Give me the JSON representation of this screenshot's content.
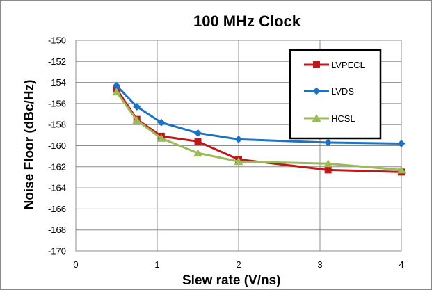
{
  "chart_data": {
    "type": "line",
    "title": "100 MHz Clock",
    "xlabel": "Slew rate (V/ns)",
    "ylabel": "Noise Floor (dBc/Hz)",
    "xlim": [
      0,
      4
    ],
    "ylim": [
      -170,
      -150
    ],
    "x_ticks": [
      "0",
      "1",
      "2",
      "3",
      "4"
    ],
    "y_ticks": [
      "-150",
      "-152",
      "-154",
      "-156",
      "-158",
      "-160",
      "-162",
      "-164",
      "-166",
      "-168",
      "-170"
    ],
    "grid": true,
    "legend_position": "top-right",
    "series": [
      {
        "name": "LVPECL",
        "color": "#c0171b",
        "marker": "square",
        "x": [
          0.5,
          0.75,
          1.05,
          1.5,
          2.0,
          3.1,
          4.0
        ],
        "y": [
          -154.6,
          -157.5,
          -159.1,
          -159.6,
          -161.3,
          -162.3,
          -162.5
        ]
      },
      {
        "name": "LVDS",
        "color": "#1d72c4",
        "marker": "diamond",
        "x": [
          0.5,
          0.75,
          1.05,
          1.5,
          2.0,
          3.1,
          4.0
        ],
        "y": [
          -154.3,
          -156.3,
          -157.8,
          -158.8,
          -159.4,
          -159.7,
          -159.8
        ]
      },
      {
        "name": "HCSL",
        "color": "#9bbb59",
        "marker": "triangle",
        "x": [
          0.5,
          0.75,
          1.05,
          1.5,
          2.0,
          3.1,
          4.0
        ],
        "y": [
          -154.9,
          -157.6,
          -159.3,
          -160.7,
          -161.5,
          -161.7,
          -162.3
        ]
      }
    ]
  }
}
